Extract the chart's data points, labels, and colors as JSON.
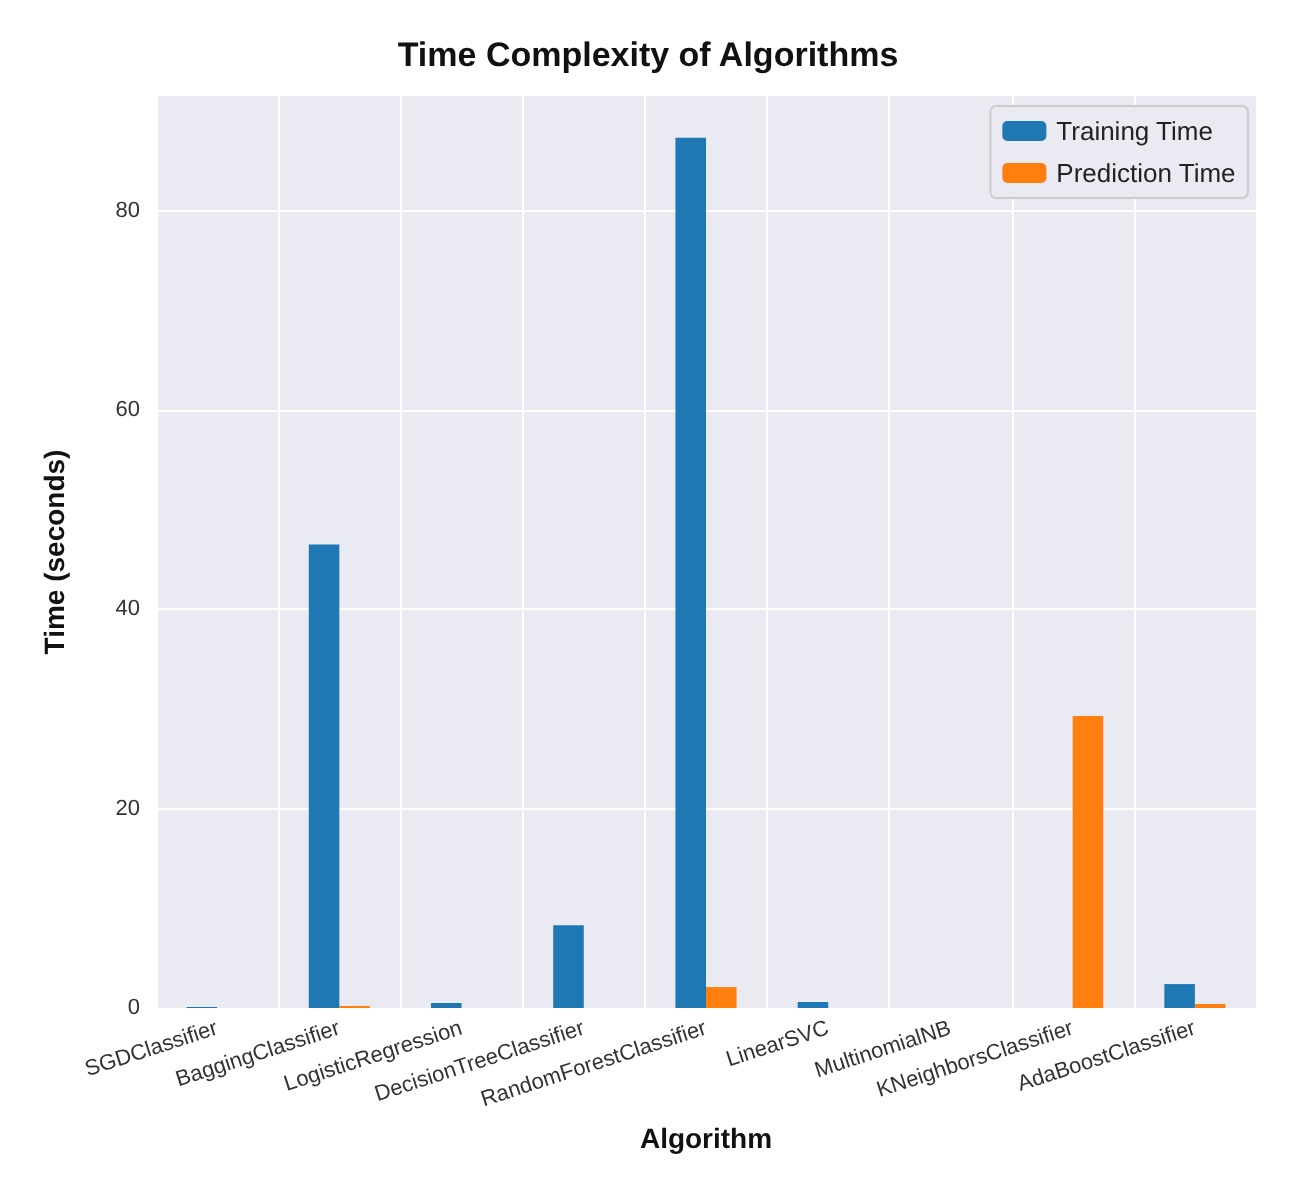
{
  "chart_data": {
    "type": "bar",
    "title": "Time Complexity of Algorithms",
    "xlabel": "Algorithm",
    "ylabel": "Time (seconds)",
    "categories": [
      "SGDClassifier",
      "BaggingClassifier",
      "LogisticRegression",
      "DecisionTreeClassifier",
      "RandomForestClassifier",
      "LinearSVC",
      "MultinomialNB",
      "KNeighborsClassifier",
      "AdaBoostClassifier"
    ],
    "series": [
      {
        "name": "Training Time",
        "color": "#1f77b4",
        "values": [
          0.1,
          46.5,
          0.5,
          8.3,
          87.3,
          0.6,
          0,
          0,
          2.4
        ]
      },
      {
        "name": "Prediction Time",
        "color": "#ff7f0e",
        "values": [
          0,
          0.2,
          0,
          0,
          2.1,
          0,
          0,
          29.3,
          0.4
        ]
      }
    ],
    "ylim": [
      0,
      91.5
    ],
    "yticks": [
      0,
      20,
      40,
      60,
      80
    ],
    "grid": true,
    "legend": "top right"
  }
}
